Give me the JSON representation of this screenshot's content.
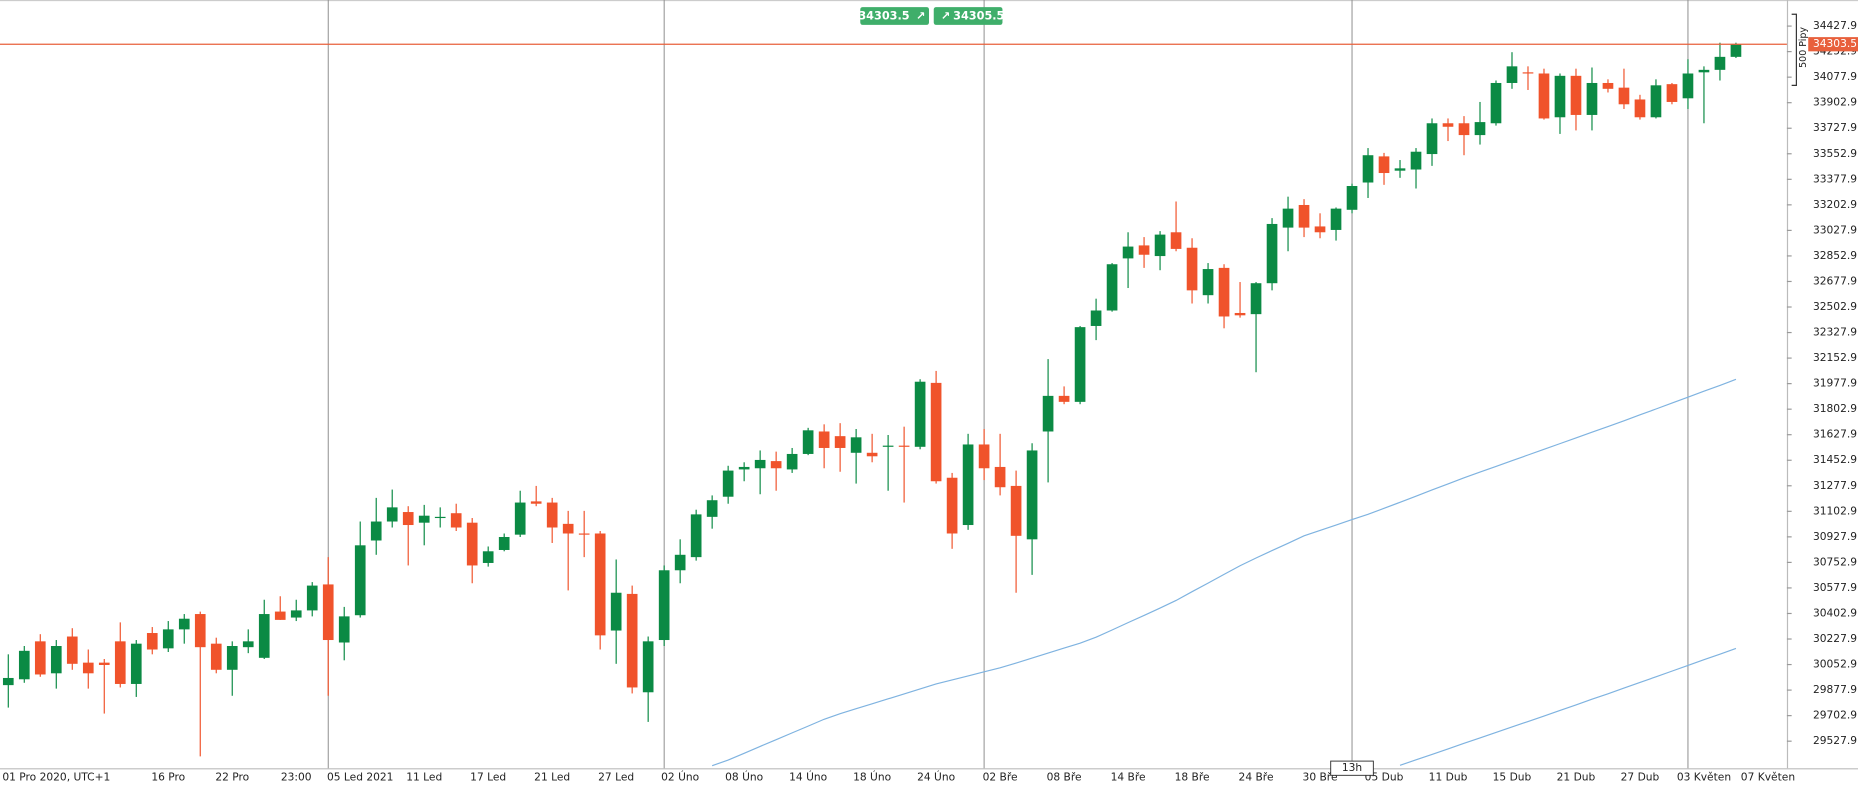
{
  "chart_data": {
    "type": "candlestick",
    "up_color": "#0b8a44",
    "down_color": "#f0532b",
    "ylim": [
      29342.6,
      34606.6
    ],
    "yticks": [
      34427.9,
      34252.9,
      34077.9,
      33902.9,
      33727.9,
      33552.9,
      33377.9,
      33202.9,
      33027.9,
      32852.9,
      32677.9,
      32502.9,
      32327.9,
      32152.9,
      31977.9,
      31802.9,
      31627.9,
      31452.9,
      31277.9,
      31102.9,
      30927.9,
      30752.9,
      30577.9,
      30402.9,
      30227.9,
      30052.9,
      29877.9,
      29702.9,
      29527.9
    ],
    "price_line": {
      "value": 34303.5,
      "color": "#e8603c"
    },
    "quote": {
      "sell": 34303.5,
      "buy": 34305.5
    },
    "range_marker": "500 Pipy",
    "time_marker": "13h",
    "categories": [
      null,
      null,
      "01 Pro 2020, UTC+1",
      null,
      null,
      null,
      null,
      null,
      null,
      null,
      "16 Pro",
      null,
      null,
      null,
      "22 Pro",
      null,
      null,
      null,
      "23:00",
      null,
      null,
      null,
      "05 Led 2021",
      null,
      null,
      null,
      "11 Led",
      null,
      null,
      null,
      "17 Led",
      null,
      null,
      null,
      "21 Led",
      null,
      null,
      null,
      "27 Led",
      null,
      null,
      null,
      "02 Úno",
      null,
      null,
      null,
      "08 Úno",
      null,
      null,
      null,
      "14 Úno",
      null,
      null,
      null,
      "18 Úno",
      null,
      null,
      null,
      "24 Úno",
      null,
      null,
      null,
      "02 Bře",
      null,
      null,
      null,
      "08 Bře",
      null,
      null,
      null,
      "14 Bře",
      null,
      null,
      null,
      "18 Bře",
      null,
      null,
      null,
      "24 Bře",
      null,
      null,
      null,
      "30 Bře",
      null,
      null,
      null,
      "05 Dub",
      null,
      null,
      null,
      "11 Dub",
      null,
      null,
      null,
      "15 Dub",
      null,
      null,
      null,
      "21 Dub",
      null,
      null,
      null,
      "27 Dub",
      null,
      null,
      null,
      "03 Květen",
      null,
      null,
      null,
      "07 Květen"
    ],
    "open": [
      29912,
      29952,
      30212,
      29993,
      30245,
      30066,
      30066,
      30212,
      29920,
      30269,
      30164,
      30294,
      30399,
      30196,
      30017,
      30172,
      30099,
      30416,
      30375,
      30424,
      30602,
      30204,
      30391,
      30903,
      31033,
      31098,
      31025,
      31057,
      31090,
      31025,
      30749,
      30838,
      30943,
      31171,
      31163,
      31017,
      30951,
      30951,
      30286,
      30537,
      29863,
      30221,
      30699,
      30789,
      31065,
      31203,
      31390,
      31398,
      31447,
      31390,
      31496,
      31650,
      31618,
      31504,
      31504,
      31545,
      31553,
      31545,
      31983,
      31333,
      31009,
      31561,
      31407,
      31277,
      30911,
      31650,
      31894,
      31853,
      32373,
      32479,
      32836,
      32925,
      32852,
      33015,
      32909,
      32584,
      32771,
      32462,
      32454,
      32666,
      33047,
      33202,
      33055,
      33031,
      33169,
      33356,
      33535,
      33437,
      33445,
      33551,
      33762,
      33762,
      33681,
      33762,
      34038,
      34111,
      34103,
      33803,
      34087,
      33819,
      34038,
      34006,
      33925,
      33803,
      34030,
      33933,
      34111,
      34128,
      34217,
      null,
      null
    ],
    "high": [
      30123,
      30180,
      30261,
      30221,
      30302,
      30156,
      30091,
      30342,
      30221,
      30310,
      30351,
      30399,
      30416,
      30237,
      30212,
      30294,
      30497,
      30521,
      30497,
      30618,
      30789,
      30448,
      31033,
      31195,
      31252,
      31138,
      31147,
      31130,
      31155,
      31057,
      30862,
      30951,
      31244,
      31277,
      31195,
      31106,
      31106,
      30968,
      30773,
      30594,
      30245,
      30732,
      30911,
      31114,
      31212,
      31415,
      31439,
      31520,
      31512,
      31537,
      31675,
      31699,
      31707,
      31667,
      31634,
      31626,
      31683,
      32008,
      32065,
      31366,
      31634,
      31667,
      31634,
      31382,
      31569,
      32146,
      31959,
      32373,
      32560,
      32804,
      33015,
      32982,
      33023,
      33226,
      32974,
      32804,
      32796,
      32674,
      32674,
      33112,
      33259,
      33242,
      33145,
      33185,
      33348,
      33592,
      33559,
      33510,
      33592,
      33795,
      33795,
      33811,
      33908,
      34055,
      34249,
      34152,
      34136,
      34103,
      34136,
      34144,
      34063,
      34136,
      33957,
      34063,
      34038,
      34201,
      34152,
      34314,
      34314,
      null,
      null
    ],
    "low": [
      29758,
      29928,
      29969,
      29888,
      30017,
      29888,
      29717,
      29896,
      29831,
      30123,
      30139,
      30196,
      29424,
      29993,
      29839,
      30131,
      30091,
      30359,
      30351,
      30383,
      29839,
      30082,
      30375,
      30805,
      30992,
      30732,
      30870,
      30992,
      30968,
      30610,
      30724,
      30829,
      30927,
      31138,
      30886,
      30561,
      30789,
      30156,
      30058,
      29855,
      29660,
      30180,
      30610,
      30765,
      30984,
      31155,
      31309,
      31220,
      31244,
      31366,
      31488,
      31398,
      31374,
      31293,
      31439,
      31244,
      31163,
      31528,
      31293,
      30846,
      30976,
      31317,
      31212,
      30545,
      30667,
      31301,
      31837,
      31837,
      32276,
      32471,
      32633,
      32771,
      32755,
      32885,
      32527,
      32527,
      32357,
      32430,
      32056,
      32617,
      32885,
      32982,
      32974,
      32958,
      33145,
      33250,
      33340,
      33388,
      33315,
      33470,
      33640,
      33543,
      33616,
      33746,
      33998,
      33990,
      33787,
      33689,
      33713,
      33713,
      33973,
      33860,
      33787,
      33795,
      33892,
      33860,
      33762,
      34055,
      34209,
      null,
      null
    ],
    "close": [
      29961,
      30147,
      29985,
      30180,
      30058,
      29993,
      30050,
      29920,
      30196,
      30156,
      30294,
      30367,
      30172,
      30017,
      30180,
      30212,
      30399,
      30359,
      30424,
      30594,
      30221,
      30383,
      30870,
      31033,
      31130,
      31009,
      31073,
      31065,
      30992,
      30732,
      30829,
      30927,
      31163,
      31155,
      30992,
      30951,
      30943,
      30253,
      30545,
      29896,
      30212,
      30699,
      30805,
      31082,
      31179,
      31382,
      31407,
      31455,
      31398,
      31496,
      31658,
      31537,
      31537,
      31610,
      31480,
      31553,
      31545,
      31991,
      31309,
      30951,
      31561,
      31398,
      31268,
      30935,
      31520,
      31894,
      31853,
      32365,
      32479,
      32796,
      32917,
      32861,
      32999,
      32901,
      32617,
      32763,
      32438,
      32446,
      32666,
      33072,
      33177,
      33047,
      33015,
      33177,
      33332,
      33543,
      33421,
      33453,
      33567,
      33762,
      33738,
      33681,
      33770,
      34038,
      34152,
      34103,
      33795,
      34087,
      33819,
      34038,
      33998,
      33892,
      33803,
      34022,
      33908,
      34103,
      34128,
      34217,
      34303,
      null,
      null
    ],
    "series": [
      {
        "color": "#7fb3e0",
        "values": [
          null,
          null,
          null,
          null,
          null,
          null,
          null,
          null,
          null,
          null,
          null,
          null,
          null,
          null,
          null,
          null,
          null,
          null,
          null,
          null,
          null,
          null,
          null,
          null,
          null,
          null,
          null,
          null,
          null,
          null,
          null,
          null,
          null,
          null,
          null,
          null,
          null,
          null,
          null,
          null,
          null,
          null,
          null,
          null,
          29360,
          29399,
          29445,
          29492,
          29538,
          29585,
          29631,
          29678,
          29716,
          29750,
          29784,
          29818,
          29852,
          29886,
          29920,
          29948,
          29975,
          30003,
          30031,
          30063,
          30097,
          30131,
          30166,
          30200,
          30240,
          30290,
          30340,
          30390,
          30440,
          30492,
          30552,
          30611,
          30671,
          30730,
          30783,
          30834,
          30884,
          30935,
          30972,
          31009,
          31046,
          31083,
          31123,
          31165,
          31207,
          31249,
          31291,
          31333,
          31372,
          31411,
          31450,
          31489,
          31528,
          31567,
          31606,
          31645,
          31684,
          31723,
          31764,
          31804,
          31845,
          31885,
          31926,
          31966,
          32007,
          null,
          null
        ]
      },
      {
        "color": "#7fb3e0",
        "values": [
          null,
          null,
          null,
          null,
          null,
          null,
          null,
          null,
          null,
          null,
          null,
          null,
          null,
          null,
          null,
          null,
          null,
          null,
          null,
          null,
          null,
          null,
          null,
          null,
          null,
          null,
          null,
          null,
          null,
          null,
          null,
          null,
          null,
          null,
          null,
          null,
          null,
          null,
          null,
          null,
          null,
          null,
          null,
          null,
          null,
          null,
          null,
          null,
          null,
          null,
          null,
          null,
          null,
          null,
          null,
          null,
          null,
          null,
          null,
          null,
          null,
          null,
          null,
          null,
          null,
          null,
          null,
          null,
          null,
          null,
          null,
          null,
          null,
          null,
          null,
          null,
          null,
          null,
          null,
          null,
          null,
          null,
          null,
          null,
          null,
          null,
          null,
          29362,
          29400,
          29437,
          29475,
          29513,
          29550,
          29588,
          29625,
          29663,
          29700,
          29738,
          29776,
          29815,
          29853,
          29892,
          29931,
          29969,
          30008,
          30047,
          30086,
          30124,
          30163,
          null,
          null
        ]
      }
    ]
  }
}
